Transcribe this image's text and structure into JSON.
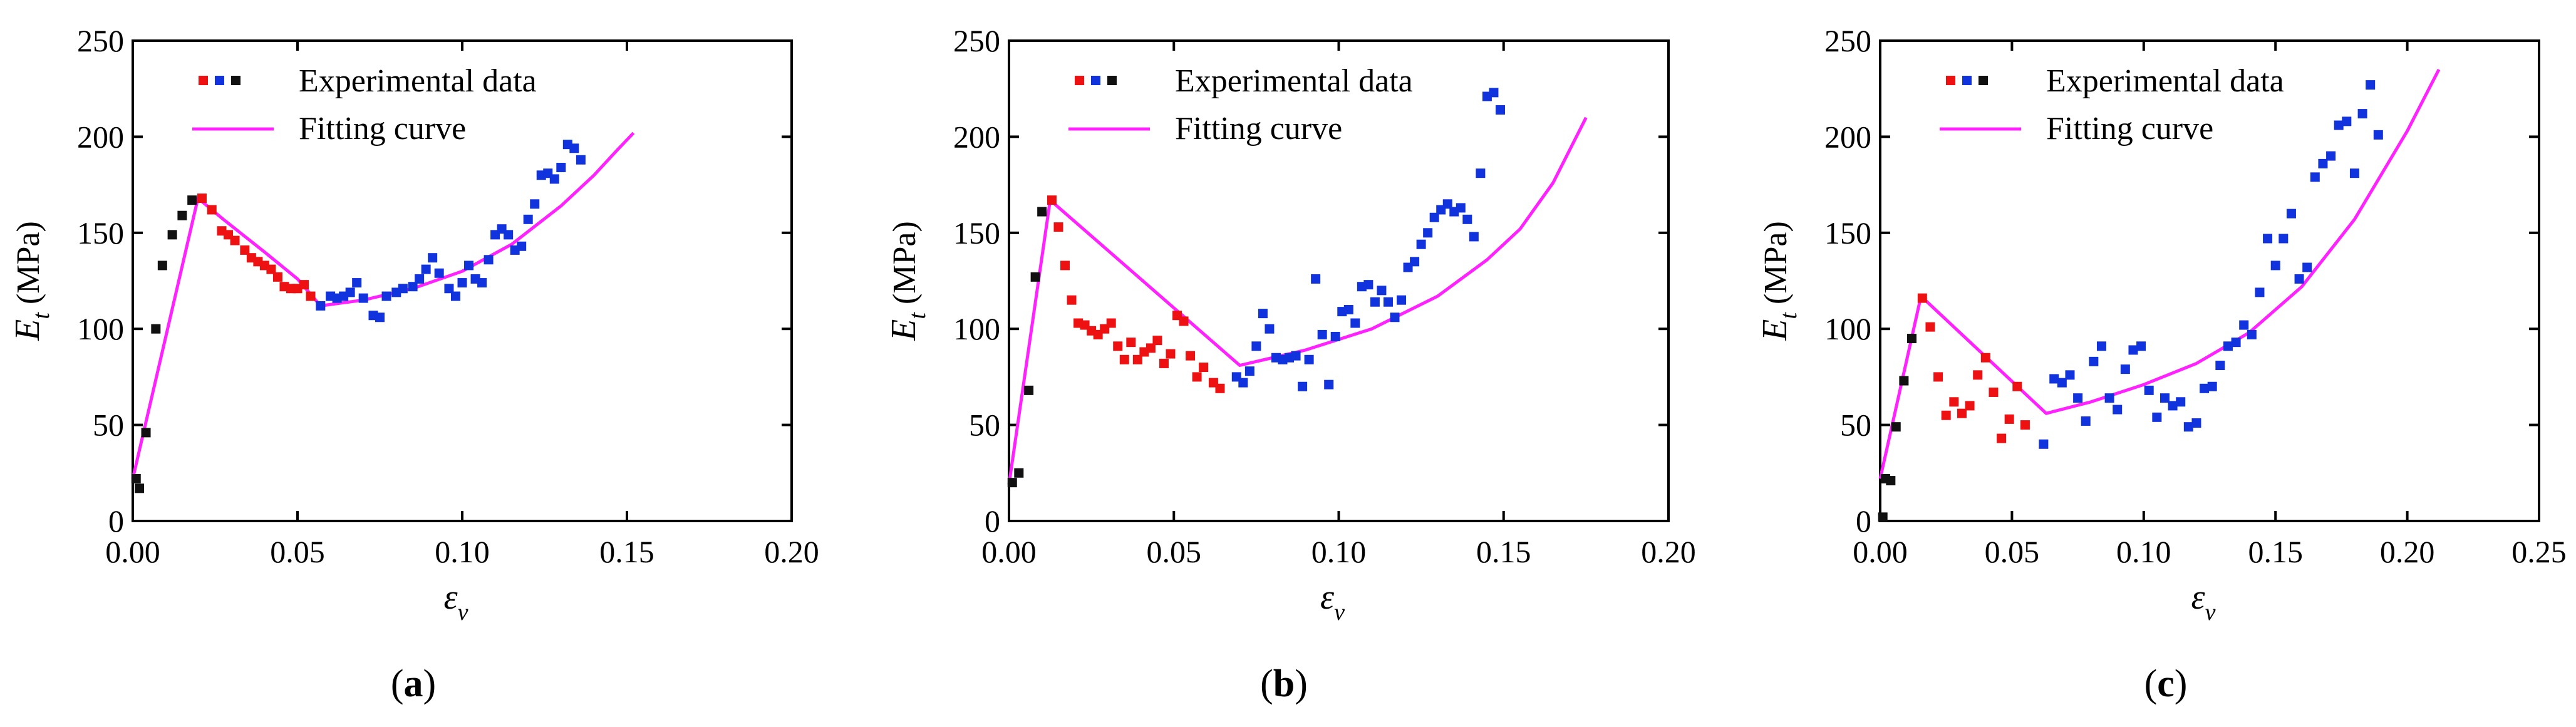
{
  "colors": {
    "black": "#111111",
    "red": "#ee1111",
    "blue": "#1133dd",
    "fit": "#ff22ff",
    "axis": "#000000"
  },
  "chart_data": [
    {
      "type": "scatter",
      "panel_label": "a",
      "xlabel": "ε",
      "xlabel_sub": "v",
      "ylabel": "E",
      "ylabel_sub": "t",
      "ylabel_unit": " (MPa)",
      "xlim": [
        0,
        0.2
      ],
      "ylim": [
        0,
        250
      ],
      "xticks": [
        0,
        0.05,
        0.1,
        0.15,
        0.2
      ],
      "xtick_labels": [
        "0.00",
        "0.05",
        "0.10",
        "0.15",
        "0.20"
      ],
      "yticks": [
        0,
        50,
        100,
        150,
        200,
        250
      ],
      "ytick_labels": [
        "0",
        "50",
        "100",
        "150",
        "200",
        "250"
      ],
      "legend": {
        "data_label": "Experimental data",
        "fit_label": "Fitting curve",
        "location": "top-left"
      },
      "series": [
        {
          "name": "black",
          "color_key": "black",
          "points": [
            [
              0.001,
              22
            ],
            [
              0.002,
              17
            ],
            [
              0.004,
              46
            ],
            [
              0.007,
              100
            ],
            [
              0.009,
              133
            ],
            [
              0.012,
              149
            ],
            [
              0.015,
              159
            ],
            [
              0.018,
              167
            ]
          ]
        },
        {
          "name": "red",
          "color_key": "red",
          "points": [
            [
              0.021,
              168
            ],
            [
              0.024,
              162
            ],
            [
              0.027,
              151
            ],
            [
              0.029,
              149
            ],
            [
              0.031,
              146
            ],
            [
              0.034,
              141
            ],
            [
              0.036,
              137
            ],
            [
              0.038,
              135
            ],
            [
              0.04,
              133
            ],
            [
              0.042,
              131
            ],
            [
              0.044,
              127
            ],
            [
              0.046,
              122
            ],
            [
              0.048,
              121
            ],
            [
              0.05,
              121
            ],
            [
              0.052,
              123
            ],
            [
              0.054,
              117
            ]
          ]
        },
        {
          "name": "blue",
          "color_key": "blue",
          "points": [
            [
              0.057,
              112
            ],
            [
              0.06,
              117
            ],
            [
              0.062,
              116
            ],
            [
              0.064,
              117
            ],
            [
              0.066,
              119
            ],
            [
              0.068,
              124
            ],
            [
              0.07,
              116
            ],
            [
              0.073,
              107
            ],
            [
              0.075,
              106
            ],
            [
              0.077,
              117
            ],
            [
              0.08,
              119
            ],
            [
              0.082,
              121
            ],
            [
              0.085,
              122
            ],
            [
              0.087,
              126
            ],
            [
              0.089,
              131
            ],
            [
              0.091,
              137
            ],
            [
              0.093,
              129
            ],
            [
              0.096,
              121
            ],
            [
              0.098,
              117
            ],
            [
              0.1,
              124
            ],
            [
              0.102,
              133
            ],
            [
              0.104,
              126
            ],
            [
              0.106,
              124
            ],
            [
              0.108,
              136
            ],
            [
              0.11,
              149
            ],
            [
              0.112,
              152
            ],
            [
              0.114,
              149
            ],
            [
              0.116,
              141
            ],
            [
              0.118,
              143
            ],
            [
              0.12,
              157
            ],
            [
              0.122,
              165
            ],
            [
              0.124,
              180
            ],
            [
              0.126,
              181
            ],
            [
              0.128,
              178
            ],
            [
              0.13,
              184
            ],
            [
              0.132,
              196
            ],
            [
              0.134,
              194
            ],
            [
              0.136,
              188
            ]
          ]
        }
      ],
      "fit": {
        "label": "Fitting curve",
        "points": [
          [
            0,
            22
          ],
          [
            0.0198,
            168
          ],
          [
            0.0275,
            157
          ],
          [
            0.04,
            140
          ],
          [
            0.05,
            126
          ],
          [
            0.057,
            112
          ],
          [
            0.07,
            115
          ],
          [
            0.085,
            121
          ],
          [
            0.1,
            130
          ],
          [
            0.115,
            144
          ],
          [
            0.13,
            164
          ],
          [
            0.14,
            180
          ],
          [
            0.147,
            193
          ],
          [
            0.152,
            202
          ]
        ]
      }
    },
    {
      "type": "scatter",
      "panel_label": "b",
      "xlabel": "ε",
      "xlabel_sub": "v",
      "ylabel": "E",
      "ylabel_sub": "t",
      "ylabel_unit": " (MPa)",
      "xlim": [
        0,
        0.2
      ],
      "ylim": [
        0,
        250
      ],
      "xticks": [
        0,
        0.05,
        0.1,
        0.15,
        0.2
      ],
      "xtick_labels": [
        "0.00",
        "0.05",
        "0.10",
        "0.15",
        "0.20"
      ],
      "yticks": [
        0,
        50,
        100,
        150,
        200,
        250
      ],
      "ytick_labels": [
        "0",
        "50",
        "100",
        "150",
        "200",
        "250"
      ],
      "legend": {
        "data_label": "Experimental data",
        "fit_label": "Fitting curve",
        "location": "top-left"
      },
      "series": [
        {
          "name": "black",
          "color_key": "black",
          "points": [
            [
              0.001,
              20
            ],
            [
              0.003,
              25
            ],
            [
              0.006,
              68
            ],
            [
              0.008,
              127
            ],
            [
              0.01,
              161
            ]
          ]
        },
        {
          "name": "red",
          "color_key": "red",
          "points": [
            [
              0.013,
              167
            ],
            [
              0.015,
              153
            ],
            [
              0.017,
              133
            ],
            [
              0.019,
              115
            ],
            [
              0.021,
              103
            ],
            [
              0.023,
              102
            ],
            [
              0.025,
              99
            ],
            [
              0.027,
              97
            ],
            [
              0.029,
              100
            ],
            [
              0.031,
              103
            ],
            [
              0.033,
              91
            ],
            [
              0.035,
              84
            ],
            [
              0.037,
              93
            ],
            [
              0.039,
              84
            ],
            [
              0.041,
              88
            ],
            [
              0.043,
              90
            ],
            [
              0.045,
              94
            ],
            [
              0.047,
              82
            ],
            [
              0.049,
              87
            ],
            [
              0.051,
              107
            ],
            [
              0.053,
              104
            ],
            [
              0.055,
              86
            ],
            [
              0.057,
              75
            ],
            [
              0.059,
              80
            ],
            [
              0.062,
              72
            ],
            [
              0.064,
              69
            ]
          ]
        },
        {
          "name": "blue",
          "color_key": "blue",
          "points": [
            [
              0.069,
              75
            ],
            [
              0.071,
              72
            ],
            [
              0.073,
              78
            ],
            [
              0.075,
              91
            ],
            [
              0.077,
              108
            ],
            [
              0.079,
              100
            ],
            [
              0.081,
              85
            ],
            [
              0.083,
              84
            ],
            [
              0.085,
              85
            ],
            [
              0.087,
              86
            ],
            [
              0.089,
              70
            ],
            [
              0.091,
              84
            ],
            [
              0.093,
              126
            ],
            [
              0.095,
              97
            ],
            [
              0.097,
              71
            ],
            [
              0.099,
              96
            ],
            [
              0.101,
              109
            ],
            [
              0.103,
              110
            ],
            [
              0.105,
              103
            ],
            [
              0.107,
              122
            ],
            [
              0.109,
              123
            ],
            [
              0.111,
              114
            ],
            [
              0.113,
              120
            ],
            [
              0.115,
              114
            ],
            [
              0.117,
              106
            ],
            [
              0.119,
              115
            ],
            [
              0.121,
              132
            ],
            [
              0.123,
              135
            ],
            [
              0.125,
              144
            ],
            [
              0.127,
              150
            ],
            [
              0.129,
              158
            ],
            [
              0.131,
              162
            ],
            [
              0.133,
              165
            ],
            [
              0.135,
              161
            ],
            [
              0.137,
              163
            ],
            [
              0.139,
              157
            ],
            [
              0.141,
              148
            ],
            [
              0.143,
              181
            ],
            [
              0.145,
              221
            ],
            [
              0.147,
              223
            ],
            [
              0.149,
              214
            ]
          ]
        }
      ],
      "fit": {
        "label": "Fitting curve",
        "points": [
          [
            0,
            19
          ],
          [
            0.0125,
            167
          ],
          [
            0.07,
            81
          ],
          [
            0.09,
            89
          ],
          [
            0.11,
            100
          ],
          [
            0.13,
            117
          ],
          [
            0.145,
            136
          ],
          [
            0.155,
            152
          ],
          [
            0.165,
            176
          ],
          [
            0.175,
            210
          ]
        ]
      }
    },
    {
      "type": "scatter",
      "panel_label": "c",
      "xlabel": "ε",
      "xlabel_sub": "v",
      "ylabel": "E",
      "ylabel_sub": "t",
      "ylabel_unit": " (MPa)",
      "xlim": [
        0,
        0.25
      ],
      "ylim": [
        0,
        250
      ],
      "xticks": [
        0,
        0.05,
        0.1,
        0.15,
        0.2,
        0.25
      ],
      "xtick_labels": [
        "0.00",
        "0.05",
        "0.10",
        "0.15",
        "0.20",
        "0.25"
      ],
      "yticks": [
        0,
        50,
        100,
        150,
        200,
        250
      ],
      "ytick_labels": [
        "0",
        "50",
        "100",
        "150",
        "200",
        "250"
      ],
      "legend": {
        "data_label": "Experimental data",
        "fit_label": "Fitting curve",
        "location": "top-left"
      },
      "series": [
        {
          "name": "black",
          "color_key": "black",
          "points": [
            [
              0.001,
              2
            ],
            [
              0.002,
              22
            ],
            [
              0.004,
              21
            ],
            [
              0.006,
              49
            ],
            [
              0.009,
              73
            ],
            [
              0.012,
              95
            ]
          ]
        },
        {
          "name": "red",
          "color_key": "red",
          "points": [
            [
              0.016,
              116
            ],
            [
              0.019,
              101
            ],
            [
              0.022,
              75
            ],
            [
              0.025,
              55
            ],
            [
              0.028,
              62
            ],
            [
              0.031,
              56
            ],
            [
              0.034,
              60
            ],
            [
              0.037,
              76
            ],
            [
              0.04,
              85
            ],
            [
              0.043,
              67
            ],
            [
              0.046,
              43
            ],
            [
              0.049,
              53
            ],
            [
              0.052,
              70
            ],
            [
              0.055,
              50
            ]
          ]
        },
        {
          "name": "blue",
          "color_key": "blue",
          "points": [
            [
              0.062,
              40
            ],
            [
              0.066,
              74
            ],
            [
              0.069,
              72
            ],
            [
              0.072,
              76
            ],
            [
              0.075,
              64
            ],
            [
              0.078,
              52
            ],
            [
              0.081,
              83
            ],
            [
              0.084,
              91
            ],
            [
              0.087,
              64
            ],
            [
              0.09,
              58
            ],
            [
              0.093,
              79
            ],
            [
              0.096,
              89
            ],
            [
              0.099,
              91
            ],
            [
              0.102,
              68
            ],
            [
              0.105,
              54
            ],
            [
              0.108,
              64
            ],
            [
              0.111,
              60
            ],
            [
              0.114,
              62
            ],
            [
              0.117,
              49
            ],
            [
              0.12,
              51
            ],
            [
              0.123,
              69
            ],
            [
              0.126,
              70
            ],
            [
              0.129,
              81
            ],
            [
              0.132,
              91
            ],
            [
              0.135,
              93
            ],
            [
              0.138,
              102
            ],
            [
              0.141,
              97
            ],
            [
              0.144,
              119
            ],
            [
              0.147,
              147
            ],
            [
              0.15,
              133
            ],
            [
              0.153,
              147
            ],
            [
              0.156,
              160
            ],
            [
              0.159,
              126
            ],
            [
              0.162,
              132
            ],
            [
              0.165,
              179
            ],
            [
              0.168,
              186
            ],
            [
              0.171,
              190
            ],
            [
              0.174,
              206
            ],
            [
              0.177,
              208
            ],
            [
              0.18,
              181
            ],
            [
              0.183,
              212
            ],
            [
              0.186,
              227
            ],
            [
              0.189,
              201
            ]
          ]
        }
      ],
      "fit": {
        "label": "Fitting curve",
        "points": [
          [
            0,
            22
          ],
          [
            0.0155,
            117
          ],
          [
            0.063,
            56
          ],
          [
            0.08,
            62
          ],
          [
            0.1,
            71
          ],
          [
            0.12,
            82
          ],
          [
            0.14,
            98
          ],
          [
            0.16,
            122
          ],
          [
            0.18,
            157
          ],
          [
            0.2,
            203
          ],
          [
            0.212,
            235
          ]
        ]
      }
    }
  ]
}
